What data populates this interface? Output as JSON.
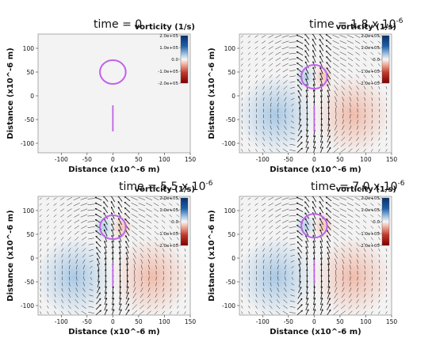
{
  "colors": {
    "positive": "#1f5fa6",
    "negative": "#c0392b",
    "neutral": "#f3f3f3",
    "interface": "#c062e8",
    "arrow": "#111111"
  },
  "chart_data": [
    {
      "type": "heatmap",
      "title_prefix": "time = 0",
      "title_exponent": "",
      "xlabel": "Distance (x10^-6 m)",
      "ylabel": "Distance (x10^-6 m)",
      "xticks": [
        "-100",
        "-50",
        "0",
        "50",
        "100",
        "150"
      ],
      "yticks": [
        "100",
        "50",
        "0",
        "-50",
        "-100"
      ],
      "colorbar_title": "vorticity (1/s)",
      "colorbar_ticks": [
        "2.0e+05",
        "1.0e+05",
        "0.0",
        "-1.0e+05",
        "-2.0e+05"
      ],
      "colorbar_range": [
        -200000,
        200000
      ],
      "xlim": [
        -145,
        150
      ],
      "ylim": [
        -120,
        130
      ],
      "circle": {
        "cx": 0,
        "cy": 50,
        "r": 25
      },
      "line": {
        "x": 0,
        "y0": -75,
        "y1": -20
      },
      "vorticity_amplitude": 0,
      "velocity_field": false
    },
    {
      "type": "heatmap",
      "title_prefix": "time = 1.8 x 10",
      "title_exponent": "-6",
      "xlabel": "Distance (x10^-6 m)",
      "ylabel": "Distance (x10^-6 m)",
      "xticks": [
        "-100",
        "-50",
        "0",
        "50",
        "100",
        "150"
      ],
      "yticks": [
        "100",
        "50",
        "0",
        "-50",
        "-100"
      ],
      "colorbar_title": "vorticity (1/s)",
      "colorbar_ticks": [
        "2.0e+05",
        "1.0e+05",
        "0.0",
        "-1.0e+05",
        "-2.0e+05"
      ],
      "colorbar_range": [
        -200000,
        200000
      ],
      "xlim": [
        -145,
        150
      ],
      "ylim": [
        -120,
        130
      ],
      "circle": {
        "cx": 0,
        "cy": 40,
        "r": 25
      },
      "line": {
        "x": 0,
        "y0": -75,
        "y1": -20
      },
      "vorticity_amplitude": 0.45,
      "velocity_field": true
    },
    {
      "type": "heatmap",
      "title_prefix": "time = 5.5 x 10",
      "title_exponent": "-6",
      "xlabel": "Distance (x10^-6 m)",
      "ylabel": "Distance (x10^-6 m)",
      "xticks": [
        "-100",
        "-50",
        "0",
        "50",
        "100",
        "150"
      ],
      "yticks": [
        "100",
        "50",
        "0",
        "-50",
        "-100"
      ],
      "colorbar_title": "vorticity (1/s)",
      "colorbar_ticks": [
        "2.0e+05",
        "1.0e+05",
        "0.0",
        "-1.0e+05",
        "-2.0e+05"
      ],
      "colorbar_range": [
        -200000,
        200000
      ],
      "xlim": [
        -145,
        150
      ],
      "ylim": [
        -120,
        130
      ],
      "circle": {
        "cx": 0,
        "cy": 65,
        "r": 25
      },
      "line": {
        "x": 0,
        "y0": -60,
        "y1": -10
      },
      "vorticity_amplitude": 0.45,
      "velocity_field": true
    },
    {
      "type": "heatmap",
      "title_prefix": "time = 7.0 x 10",
      "title_exponent": "-6",
      "xlabel": "Distance (x10^-6 m)",
      "ylabel": "Distance (x10^-6 m)",
      "xticks": [
        "-100",
        "-50",
        "0",
        "50",
        "100",
        "150"
      ],
      "yticks": [
        "100",
        "50",
        "0",
        "-50",
        "-100"
      ],
      "colorbar_title": "vorticity (1/s)",
      "colorbar_ticks": [
        "2.0e+05",
        "1.0e+05",
        "0.0",
        "-1.0e+05",
        "-2.0e+05"
      ],
      "colorbar_range": [
        -200000,
        200000
      ],
      "xlim": [
        -145,
        150
      ],
      "ylim": [
        -120,
        130
      ],
      "circle": {
        "cx": 0,
        "cy": 68,
        "r": 25
      },
      "line": {
        "x": 0,
        "y0": -55,
        "y1": -5
      },
      "vorticity_amplitude": 0.45,
      "velocity_field": true
    }
  ]
}
